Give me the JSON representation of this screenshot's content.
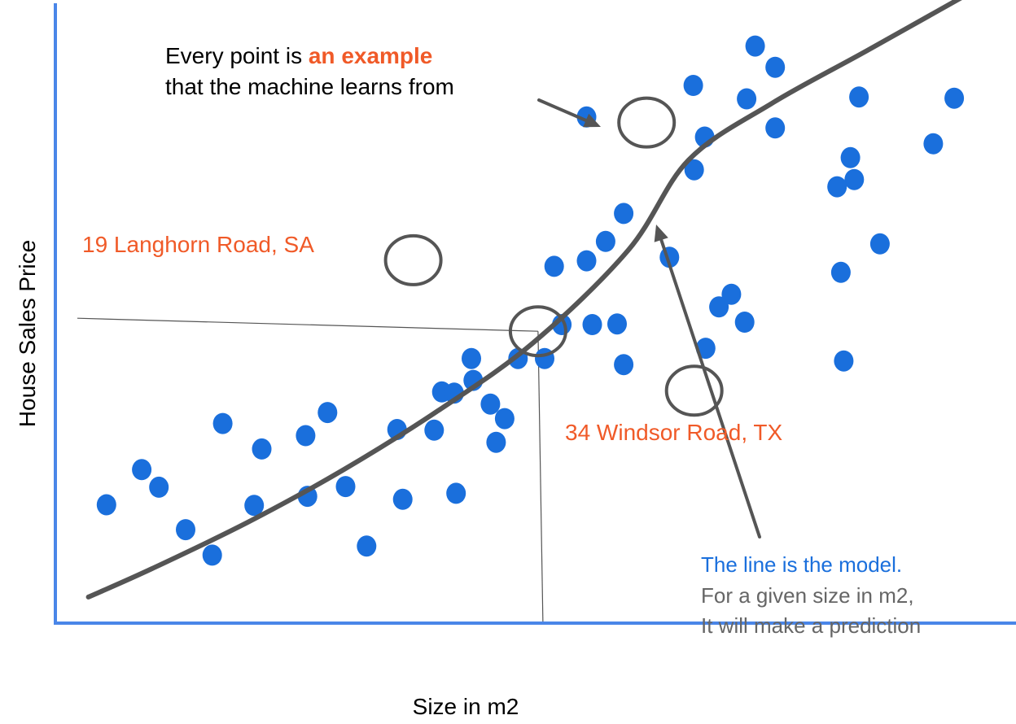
{
  "chart_data": {
    "type": "scatter",
    "xlabel": "Size in m2",
    "ylabel": "House Sales Price",
    "xlim": [
      0,
      100
    ],
    "ylim": [
      0,
      100
    ],
    "grid": false,
    "points": {
      "x": [
        5.2,
        8.9,
        10.7,
        13.5,
        16.3,
        17.4,
        21.5,
        20.7,
        26.1,
        26.3,
        30.3,
        28.4,
        32.5,
        35.7,
        36.3,
        39.6,
        41.9,
        40.4,
        43.7,
        41.7,
        43.5,
        46.1,
        47.0,
        48.4,
        45.5,
        52.2,
        53.0,
        51.2,
        55.6,
        56.2,
        59.5,
        57.6,
        58.8,
        55.6,
        59.5,
        64.3,
        66.9,
        69.5,
        66.8,
        70.8,
        68.1,
        75.4,
        75.4,
        73.3,
        72.4,
        82.6,
        82.3,
        83.7,
        84.2,
        72.2,
        81.9,
        92.0,
        83.3,
        68.0,
        86.4,
        94.2
      ],
      "y": [
        19.5,
        25.3,
        22.4,
        15.4,
        11.2,
        32.9,
        28.7,
        19.4,
        30.9,
        20.9,
        22.5,
        34.7,
        12.7,
        31.9,
        20.4,
        31.8,
        21.4,
        38.1,
        40.0,
        37.9,
        43.6,
        29.8,
        33.7,
        43.6,
        36.1,
        58.8,
        49.2,
        43.6,
        59.7,
        49.2,
        42.6,
        62.9,
        49.3,
        83.4,
        67.5,
        60.3,
        74.7,
        52.1,
        88.6,
        54.2,
        45.3,
        81.6,
        91.6,
        95.1,
        86.4,
        43.2,
        57.8,
        73.1,
        86.7,
        49.6,
        71.9,
        79.0,
        76.7,
        80.1,
        62.5,
        86.5
      ]
    },
    "model_line": {
      "x": [
        3.3,
        10,
        20,
        30,
        40,
        50,
        60,
        66.3,
        75,
        85,
        96
      ],
      "y": [
        4.3,
        9.0,
        16.6,
        25.2,
        35.0,
        46.2,
        61.5,
        76.3,
        85.6,
        94.3,
        104.0
      ]
    },
    "prediction": {
      "x": 50.5,
      "y": 48.1
    },
    "highlighted": {
      "langhorn": {
        "x": 37.4,
        "y": 59.8
      },
      "windsor": {
        "x": 66.9,
        "y": 38.3
      },
      "example": {
        "x": 61.9,
        "y": 82.5
      }
    },
    "annotations": {
      "example_line1_prefix": "Every point is ",
      "example_line1_emph": "an example",
      "example_line2": "that the machine learns from",
      "langhorn_label": "19 Langhorn Road, SA",
      "windsor_label": "34 Windsor Road, TX",
      "model_line1": "The line is the model.",
      "model_line2": "For a given size in m2,",
      "model_line3": "It will make a prediction"
    },
    "colors": {
      "points": "#1a6fdc",
      "axes": "#4a86e8",
      "curve": "#555555",
      "accent": "#f05a28",
      "model_text": "#1a6fdc",
      "note_text": "#666666"
    }
  }
}
